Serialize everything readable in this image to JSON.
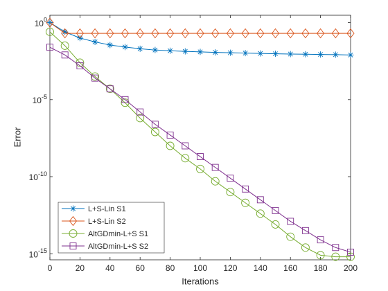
{
  "chart_data": {
    "type": "line",
    "xlabel": "Iterations",
    "ylabel": "Error",
    "x": [
      0,
      10,
      20,
      30,
      40,
      50,
      60,
      70,
      80,
      90,
      100,
      110,
      120,
      130,
      140,
      150,
      160,
      170,
      180,
      190,
      200
    ],
    "series": [
      {
        "name": "L+S-Lin S1",
        "color": "#0072BD",
        "marker": "star",
        "values": [
          1,
          0.25,
          0.1,
          0.056,
          0.035,
          0.026,
          0.02,
          0.0166,
          0.0148,
          0.0135,
          0.0126,
          0.0117,
          0.011,
          0.0105,
          0.01,
          0.0095,
          0.0091,
          0.0089,
          0.0085,
          0.0083,
          0.0079
        ]
      },
      {
        "name": "L+S-Lin S2",
        "color": "#D95319",
        "marker": "diamond",
        "values": [
          1,
          0.2,
          0.2,
          0.2,
          0.2,
          0.2,
          0.2,
          0.2,
          0.2,
          0.2,
          0.2,
          0.2,
          0.2,
          0.2,
          0.2,
          0.2,
          0.2,
          0.2,
          0.2,
          0.2,
          0.2
        ]
      },
      {
        "name": "AltGDmin-L+S S1",
        "color": "#77AC30",
        "marker": "circle",
        "values": [
          0.251,
          0.0316,
          0.00251,
          0.000316,
          5.01e-05,
          6.31e-06,
          6.31e-07,
          7.94e-08,
          1e-08,
          1.58e-09,
          3.16e-10,
          5.01e-11,
          1e-11,
          2e-12,
          3.98e-13,
          7.94e-14,
          1.26e-14,
          2.51e-15,
          7.94e-16,
          6.31e-16,
          6.31e-16
        ]
      },
      {
        "name": "AltGDmin-L+S S2",
        "color": "#7E2F8E",
        "marker": "square",
        "values": [
          0.0251,
          0.00794,
          0.00158,
          0.000251,
          5.01e-05,
          1e-05,
          1.58e-06,
          2.51e-07,
          5.01e-08,
          1e-08,
          2e-09,
          3.98e-10,
          7.94e-11,
          1.58e-11,
          3.16e-12,
          6.31e-13,
          1.26e-13,
          3.16e-14,
          7.94e-15,
          2.51e-15,
          1.26e-15
        ]
      }
    ],
    "xlim": [
      0,
      200
    ],
    "xticks": [
      0,
      20,
      40,
      60,
      80,
      100,
      120,
      140,
      160,
      180,
      200
    ],
    "ylim": [
      4e-16,
      3
    ],
    "yscale": "log",
    "yticks": [
      {
        "value": 1e-15,
        "label": "10^-15"
      },
      {
        "value": 1e-10,
        "label": "10^-10"
      },
      {
        "value": 1e-05,
        "label": "10^-5"
      },
      {
        "value": 1,
        "label": "10^0"
      }
    ],
    "legend": "lower left"
  }
}
